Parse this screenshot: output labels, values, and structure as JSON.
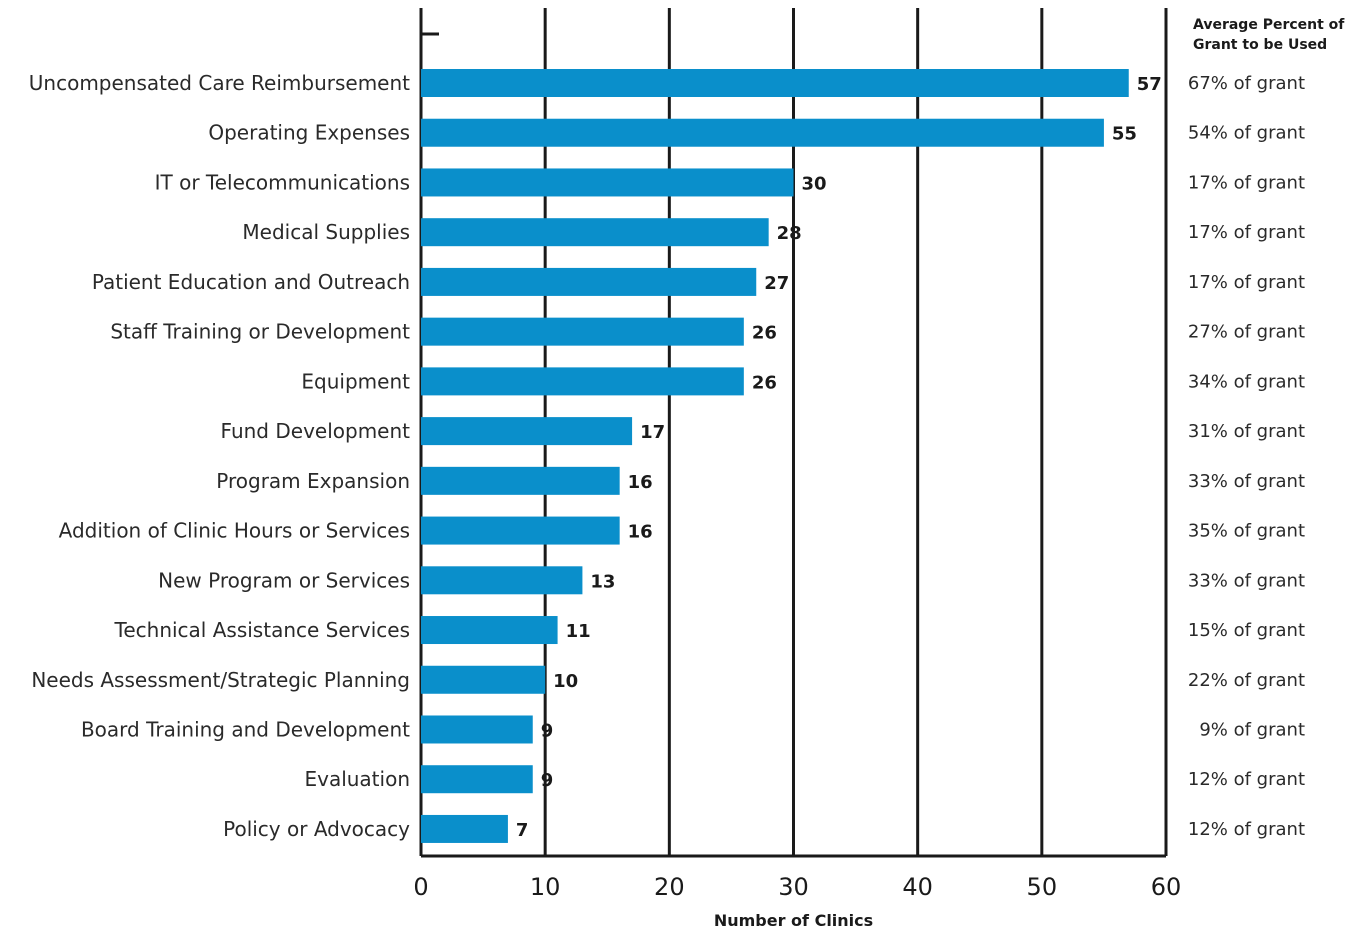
{
  "chart_data": {
    "type": "bar",
    "orientation": "horizontal",
    "categories": [
      "Uncompensated Care Reimbursement",
      "Operating Expenses",
      "IT or Telecommunications",
      "Medical Supplies",
      "Patient Education and Outreach",
      "Staff Training or Development",
      "Equipment",
      "Fund Development",
      "Program Expansion",
      "Addition of Clinic Hours or Services",
      "New Program or Services",
      "Technical Assistance Services",
      "Needs Assessment/Strategic Planning",
      "Board Training and Development",
      "Evaluation",
      "Policy or Advocacy"
    ],
    "values": [
      57,
      55,
      30,
      28,
      27,
      26,
      26,
      17,
      16,
      16,
      13,
      11,
      10,
      9,
      9,
      7
    ],
    "value_labels": [
      "57",
      "55",
      "30",
      "28",
      "27",
      "26",
      "26",
      "17",
      "16",
      "16",
      "13",
      "11",
      "10",
      "9",
      "9",
      "7"
    ],
    "secondary_header": [
      "Average Percent of",
      "Grant to be Used"
    ],
    "secondary_labels": [
      "67% of grant",
      "54% of grant",
      "17% of grant",
      "17% of grant",
      "17% of grant",
      "27% of grant",
      "34% of grant",
      "31% of grant",
      "33% of grant",
      "35% of grant",
      "33% of grant",
      "15% of grant",
      "22% of grant",
      "9% of grant",
      "12% of grant",
      "12% of grant"
    ],
    "xlabel": "Number of Clinics",
    "ylabel": "",
    "title": "",
    "xlim": [
      0,
      60
    ],
    "xticks": [
      0,
      10,
      20,
      30,
      40,
      50,
      60
    ],
    "xtick_labels": [
      "0",
      "10",
      "20",
      "30",
      "40",
      "50",
      "60"
    ],
    "grid": true,
    "legend": "none",
    "bar_color": "#0a8fcb",
    "grid_color": "#1a1a1a"
  }
}
